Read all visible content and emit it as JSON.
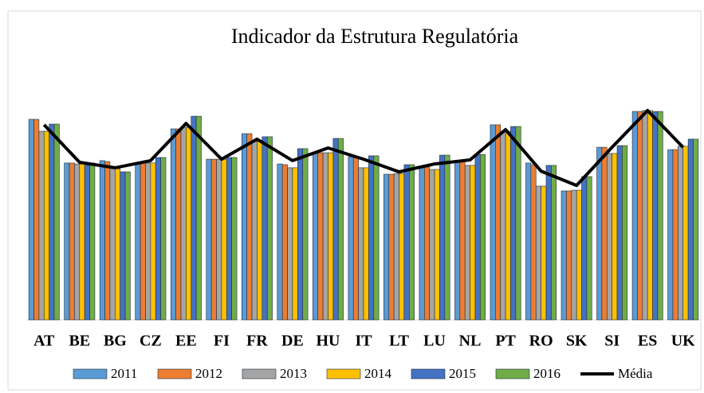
{
  "chart_data": {
    "type": "bar",
    "title": "Indicador da Estrutura Regulatória",
    "categories": [
      "AT",
      "BE",
      "BG",
      "CZ",
      "EE",
      "FI",
      "FR",
      "DE",
      "HU",
      "IT",
      "LT",
      "LU",
      "NL",
      "PT",
      "RO",
      "SK",
      "SI",
      "ES",
      "UK"
    ],
    "ylim": [
      0,
      100
    ],
    "series": [
      {
        "name": "2011",
        "color": "#5b9bd5",
        "values": [
          84,
          65.7,
          66.7,
          65.7,
          80,
          67.3,
          78,
          65.3,
          70,
          68.3,
          61,
          64,
          66,
          81.7,
          65.7,
          54,
          72.3,
          87.3,
          71.3
        ]
      },
      {
        "name": "2012",
        "color": "#ed7d31",
        "values": [
          84,
          65.7,
          66.3,
          65.7,
          80,
          67.3,
          78,
          65,
          70,
          68.3,
          61,
          64,
          66.7,
          81.7,
          65,
          54,
          72.3,
          87.3,
          71.3
        ]
      },
      {
        "name": "2013",
        "color": "#a5a5a5",
        "values": [
          79,
          65.3,
          64,
          65.7,
          80.7,
          67.3,
          74.7,
          63.7,
          70,
          63.7,
          61.3,
          63,
          64.7,
          79,
          56,
          54.3,
          69.7,
          87.7,
          72.7
        ]
      },
      {
        "name": "2014",
        "color": "#ffc000",
        "values": [
          79,
          65.3,
          63.3,
          65.7,
          80.7,
          67.3,
          74.7,
          63.7,
          70,
          63.7,
          61.3,
          63,
          64.7,
          79,
          56,
          54.3,
          69.7,
          87.7,
          72.7
        ]
      },
      {
        "name": "2015",
        "color": "#4472c4",
        "values": [
          82,
          65.7,
          62,
          68,
          85.3,
          68,
          76.7,
          71.7,
          76,
          68.7,
          65,
          69,
          69.3,
          81,
          64.7,
          60,
          73,
          87.3,
          75.7
        ]
      },
      {
        "name": "2016",
        "color": "#70ad47",
        "values": [
          82,
          65.7,
          62,
          68,
          85.3,
          68,
          76.7,
          71.7,
          76,
          68.7,
          65,
          69,
          69.3,
          81,
          64.7,
          60,
          73,
          87.3,
          75.7
        ]
      },
      {
        "name": "Média",
        "color": "#000000",
        "type": "line",
        "values": [
          81.7,
          66,
          63.7,
          66.7,
          82.3,
          67.3,
          75.7,
          66.7,
          72,
          67.3,
          62,
          65.3,
          67,
          79.7,
          62.3,
          56.3,
          72.3,
          87.7,
          72.3
        ]
      }
    ]
  }
}
